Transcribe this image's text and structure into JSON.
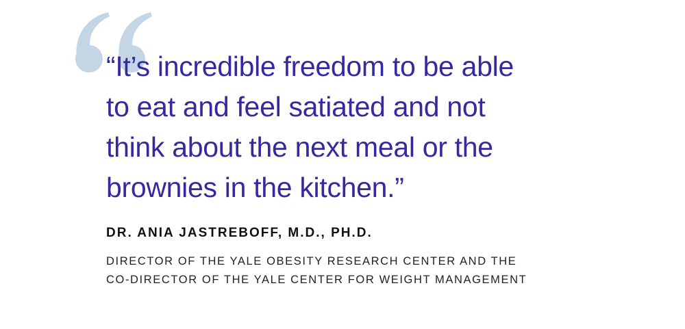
{
  "quote": {
    "lines": [
      "“It’s incredible freedom to be able",
      "to eat and feel satiated and not",
      "think about the next meal or the",
      "brownies in the kitchen.”"
    ]
  },
  "attribution": {
    "name": "DR. ANIA JASTREBOFF, M.D., PH.D.",
    "title_lines": [
      "DIRECTOR OF THE YALE OBESITY RESEARCH CENTER AND THE",
      "CO-DIRECTOR OF THE YALE CENTER FOR WEIGHT MANAGEMENT"
    ]
  }
}
